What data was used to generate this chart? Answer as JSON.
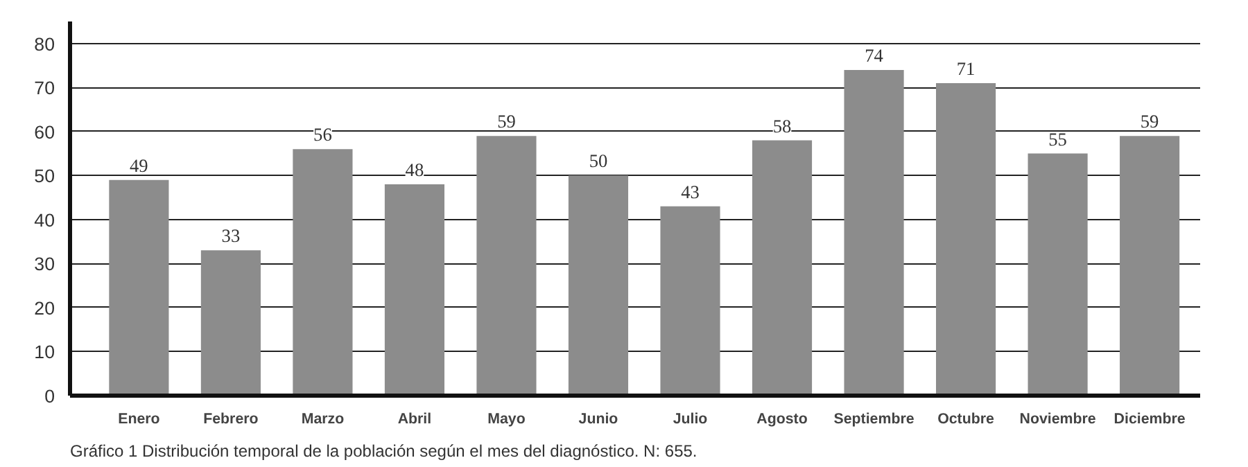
{
  "chart_data": {
    "type": "bar",
    "categories": [
      "Enero",
      "Febrero",
      "Marzo",
      "Abril",
      "Mayo",
      "Junio",
      "Julio",
      "Agosto",
      "Septiembre",
      "Octubre",
      "Noviembre",
      "Diciembre"
    ],
    "values": [
      49,
      33,
      56,
      48,
      59,
      50,
      43,
      58,
      74,
      71,
      55,
      59
    ],
    "color": "#8c8c8c",
    "ylim": [
      0,
      85
    ],
    "yticks": [
      0,
      10,
      20,
      30,
      40,
      50,
      60,
      70,
      80
    ],
    "grid": "y",
    "data_labels": true,
    "annotations": [
      "Gráfico 1 Distribución temporal de la población según el mes del diagnóstico. N: 655."
    ]
  }
}
